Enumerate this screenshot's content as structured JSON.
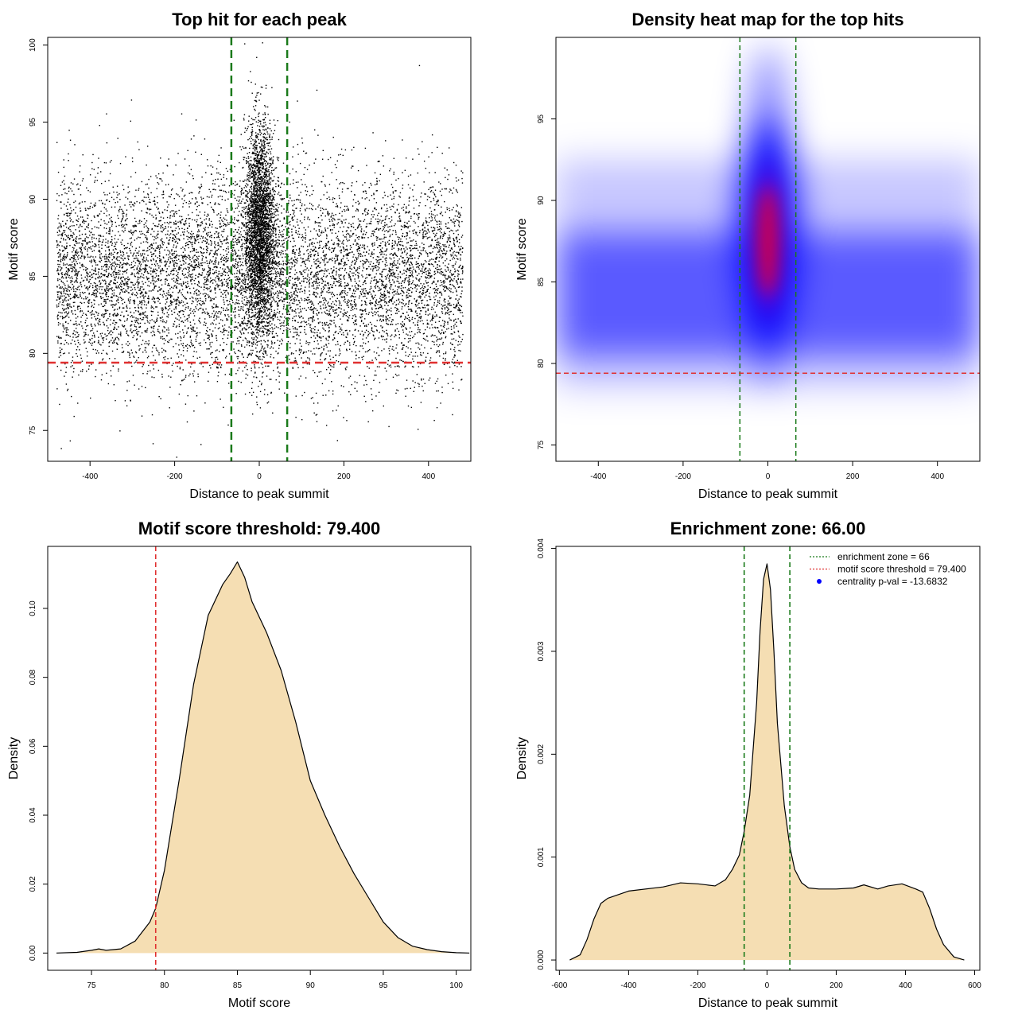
{
  "chart_data": [
    {
      "type": "scatter",
      "title": "Top hit for each peak",
      "xlabel": "Distance to peak summit",
      "ylabel": "Motif score",
      "xlim": [
        -500,
        500
      ],
      "ylim": [
        73,
        100.5
      ],
      "x_ticks": [
        -400,
        -200,
        0,
        200,
        400
      ],
      "y_ticks": [
        75,
        80,
        85,
        90,
        95,
        100
      ],
      "grid": false,
      "reference_lines": [
        {
          "orientation": "vertical",
          "value": -66,
          "color": "#1a7a1a",
          "style": "dashed"
        },
        {
          "orientation": "vertical",
          "value": 66,
          "color": "#1a7a1a",
          "style": "dashed"
        },
        {
          "orientation": "horizontal",
          "value": 79.4,
          "color": "#e03030",
          "style": "dashed"
        }
      ],
      "distribution": {
        "background": {
          "x_range": [
            -480,
            480
          ],
          "y_mean": 85,
          "y_sd": 3.2
        },
        "central": {
          "x_mean": 0,
          "x_sd": 18,
          "y_mean": 88,
          "y_sd": 3.4
        }
      }
    },
    {
      "type": "heatmap",
      "title": "Density heat map for the top hits",
      "xlabel": "Distance to peak summit",
      "ylabel": "Motif score",
      "xlim": [
        -500,
        500
      ],
      "ylim": [
        74,
        100
      ],
      "x_ticks": [
        -400,
        -200,
        0,
        200,
        400
      ],
      "y_ticks": [
        75,
        80,
        85,
        90,
        95
      ],
      "colorscale": [
        "#ffffff",
        "#0000ff",
        "#ff0000"
      ],
      "reference_lines": [
        {
          "orientation": "vertical",
          "value": -66,
          "color": "#1a7a1a",
          "style": "dashed"
        },
        {
          "orientation": "vertical",
          "value": 66,
          "color": "#1a7a1a",
          "style": "dashed"
        },
        {
          "orientation": "horizontal",
          "value": 79.4,
          "color": "#e03030",
          "style": "dashed"
        }
      ],
      "peak": {
        "x": 0,
        "y": 87.5
      }
    },
    {
      "type": "area",
      "title": "Motif score threshold: 79.400",
      "xlabel": "Motif score",
      "ylabel": "Density",
      "xlim": [
        72,
        101
      ],
      "ylim": [
        -0.005,
        0.118
      ],
      "x_ticks": [
        75,
        80,
        85,
        90,
        95,
        100
      ],
      "y_ticks": [
        0.0,
        0.02,
        0.04,
        0.06,
        0.08,
        0.1
      ],
      "y_tick_labels": [
        "0.00",
        "0.02",
        "0.04",
        "0.06",
        "0.08",
        "0.10"
      ],
      "fill_color": "#f5deb3",
      "x": [
        72.6,
        74,
        75,
        75.5,
        76,
        77,
        78,
        79,
        79.4,
        80,
        81,
        82,
        83,
        84,
        84.5,
        85,
        85.5,
        86,
        87,
        88,
        89,
        90,
        91,
        92,
        93,
        94,
        95,
        96,
        97,
        98,
        99,
        100,
        100.9
      ],
      "y": [
        0.0,
        0.0002,
        0.0008,
        0.0012,
        0.0008,
        0.0012,
        0.0035,
        0.009,
        0.013,
        0.024,
        0.05,
        0.078,
        0.098,
        0.107,
        0.11,
        0.1135,
        0.109,
        0.102,
        0.093,
        0.082,
        0.067,
        0.05,
        0.04,
        0.031,
        0.023,
        0.016,
        0.009,
        0.0045,
        0.002,
        0.001,
        0.0004,
        0.0001,
        0.0
      ],
      "reference_lines": [
        {
          "orientation": "vertical",
          "value": 79.4,
          "color": "#e03030",
          "style": "dashed"
        }
      ]
    },
    {
      "type": "area",
      "title": "Enrichment zone: 66.00",
      "xlabel": "Distance to peak summit",
      "ylabel": "Density",
      "xlim": [
        -610,
        615
      ],
      "ylim": [
        -0.0001,
        0.00402
      ],
      "x_ticks": [
        -600,
        -400,
        -200,
        0,
        200,
        400,
        600
      ],
      "y_ticks": [
        0.0,
        0.001,
        0.002,
        0.003,
        0.004
      ],
      "y_tick_labels": [
        "0.000",
        "0.001",
        "0.002",
        "0.003",
        "0.004"
      ],
      "fill_color": "#f5deb3",
      "x": [
        -570,
        -540,
        -520,
        -500,
        -480,
        -460,
        -400,
        -300,
        -250,
        -200,
        -150,
        -120,
        -100,
        -80,
        -66,
        -50,
        -30,
        -20,
        -10,
        0,
        10,
        20,
        30,
        50,
        66,
        80,
        100,
        120,
        150,
        200,
        250,
        280,
        320,
        350,
        390,
        430,
        450,
        470,
        490,
        510,
        540,
        570
      ],
      "y": [
        0.0,
        5e-05,
        0.0002,
        0.0004,
        0.00055,
        0.0006,
        0.00067,
        0.00071,
        0.00075,
        0.00074,
        0.00072,
        0.00078,
        0.00088,
        0.00102,
        0.00125,
        0.0016,
        0.0025,
        0.0032,
        0.0037,
        0.00385,
        0.0036,
        0.003,
        0.0023,
        0.0015,
        0.0011,
        0.00088,
        0.00075,
        0.0007,
        0.00069,
        0.00069,
        0.0007,
        0.00073,
        0.00069,
        0.00072,
        0.00074,
        0.00069,
        0.00066,
        0.0005,
        0.0003,
        0.00015,
        3e-05,
        0.0
      ],
      "reference_lines": [
        {
          "orientation": "vertical",
          "value": -66,
          "color": "#1a7a1a",
          "style": "dashed"
        },
        {
          "orientation": "vertical",
          "value": 66,
          "color": "#1a7a1a",
          "style": "dashed"
        }
      ],
      "legend": {
        "placement": "top-right",
        "items": [
          {
            "label": "enrichment zone = 66",
            "color": "#1a7a1a",
            "symbol": "dotted-line"
          },
          {
            "label": "motif score threshold = 79.400",
            "color": "#e03030",
            "symbol": "dotted-line"
          },
          {
            "label": "centrality p-val = -13.6832",
            "color": "#0000ff",
            "symbol": "dot"
          }
        ]
      }
    }
  ]
}
